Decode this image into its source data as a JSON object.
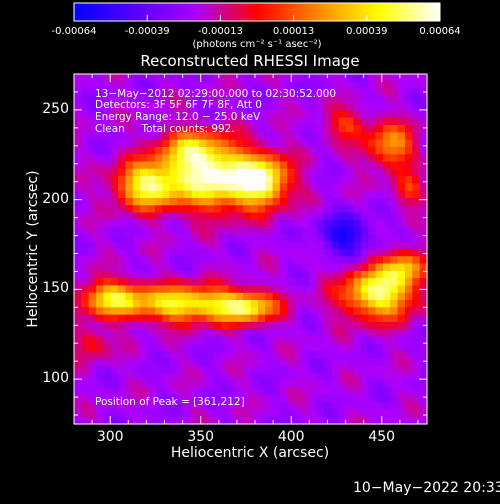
{
  "colorbar": {
    "tick_labels": [
      "-0.00064",
      "-0.00039",
      "-0.00013",
      "0.00013",
      "0.00039",
      "0.00064"
    ],
    "unit_label": "(photons cm⁻² s⁻¹ asec⁻²)",
    "colors": [
      "#0000ff",
      "#5500ff",
      "#aa00ff",
      "#ff0000",
      "#ff8800",
      "#ffff00",
      "#ffffff"
    ]
  },
  "chart_data": {
    "type": "heatmap",
    "title": "Reconstructed RHESSI Image",
    "xlabel": "Heliocentric X (arcsec)",
    "ylabel": "Heliocentric Y (arcsec)",
    "xlim": [
      280,
      475
    ],
    "ylim": [
      75,
      270
    ],
    "x_ticks": [
      300,
      350,
      400,
      450
    ],
    "y_ticks": [
      100,
      150,
      200,
      250
    ],
    "clim": [
      -0.00064,
      0.00064
    ],
    "peak_position": [
      361,
      212
    ],
    "sources": [
      {
        "x": 360,
        "y": 212,
        "sx": 20,
        "sy": 12,
        "amp": 1.0
      },
      {
        "x": 320,
        "y": 208,
        "sx": 12,
        "sy": 9,
        "amp": 0.8
      },
      {
        "x": 345,
        "y": 228,
        "sx": 12,
        "sy": 8,
        "amp": 0.55
      },
      {
        "x": 385,
        "y": 210,
        "sx": 9,
        "sy": 9,
        "amp": 0.65
      },
      {
        "x": 300,
        "y": 145,
        "sx": 12,
        "sy": 7,
        "amp": 0.7
      },
      {
        "x": 340,
        "y": 142,
        "sx": 20,
        "sy": 7,
        "amp": 0.82
      },
      {
        "x": 375,
        "y": 140,
        "sx": 12,
        "sy": 6,
        "amp": 0.75
      },
      {
        "x": 448,
        "y": 148,
        "sx": 14,
        "sy": 10,
        "amp": 0.9
      },
      {
        "x": 462,
        "y": 162,
        "sx": 8,
        "sy": 7,
        "amp": 0.55
      },
      {
        "x": 455,
        "y": 230,
        "sx": 10,
        "sy": 9,
        "amp": 0.55
      },
      {
        "x": 465,
        "y": 205,
        "sx": 6,
        "sy": 6,
        "amp": 0.35
      },
      {
        "x": 290,
        "y": 120,
        "sx": 7,
        "sy": 6,
        "amp": 0.3
      },
      {
        "x": 430,
        "y": 242,
        "sx": 8,
        "sy": 6,
        "amp": 0.35
      },
      {
        "x": 430,
        "y": 180,
        "sx": 10,
        "sy": 8,
        "amp": -0.45
      }
    ]
  },
  "annotations": {
    "time_range": "13−May−2012 02:29:00.000 to 02:30:52.000",
    "detectors": "Detectors: 3F 5F 6F 7F 8F, Att 0",
    "energy_range": "Energy Range: 12.0 − 25.0 keV",
    "method_counts": "Clean     Total counts: 992.",
    "peak_label": "Position of Peak = [361,212]"
  },
  "footer": {
    "date": "10−May−2022 20:33"
  }
}
